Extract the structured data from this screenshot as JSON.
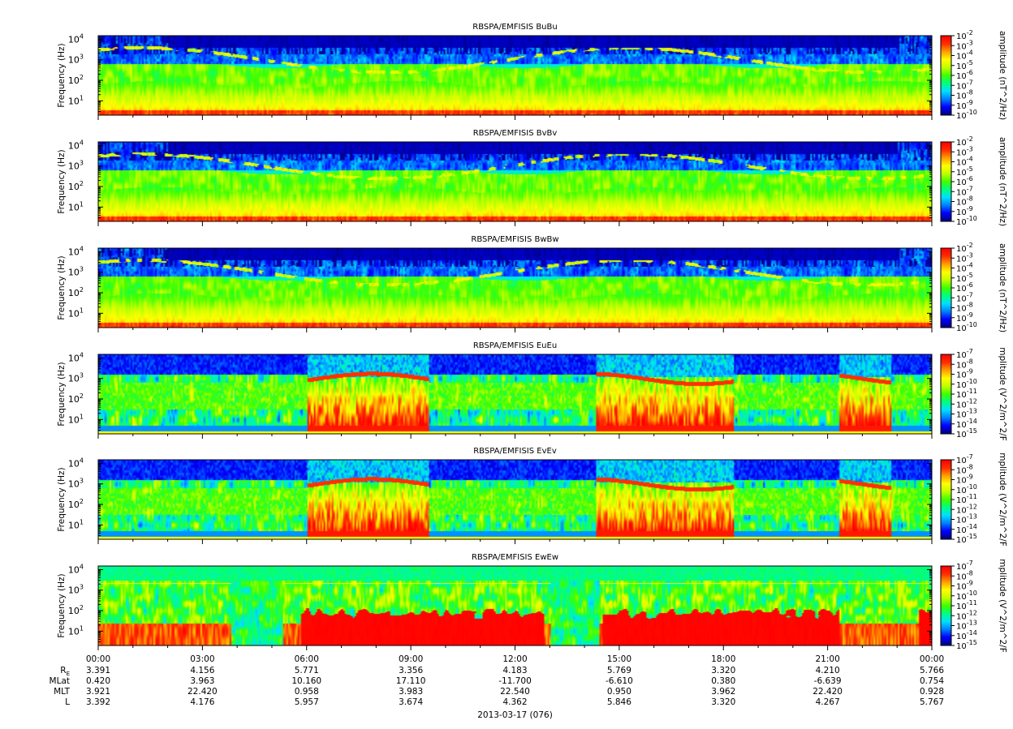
{
  "chart_data": {
    "type": "heatmap",
    "panels": [
      {
        "title": "RBSPA/EMFISIS  BuBu",
        "ylabel": "Frequency (Hz)",
        "ylim": [
          2,
          15000
        ],
        "yscale": "log",
        "colorbar": {
          "label": "amplitude (nT^2/Hz)",
          "range_exp": [
            -10,
            -2
          ],
          "tick_exponents": [
            -10,
            -9,
            -8,
            -7,
            -6,
            -5,
            -4,
            -3,
            -2
          ]
        }
      },
      {
        "title": "RBSPA/EMFISIS  BvBv",
        "ylabel": "Frequency (Hz)",
        "ylim": [
          2,
          15000
        ],
        "yscale": "log",
        "colorbar": {
          "label": "amplitude (nT^2/Hz)",
          "range_exp": [
            -10,
            -2
          ],
          "tick_exponents": [
            -10,
            -9,
            -8,
            -7,
            -6,
            -5,
            -4,
            -3,
            -2
          ]
        }
      },
      {
        "title": "RBSPA/EMFISIS  BwBw",
        "ylabel": "Frequency (Hz)",
        "ylim": [
          2,
          15000
        ],
        "yscale": "log",
        "colorbar": {
          "label": "amplitude (nT^2/Hz)",
          "range_exp": [
            -10,
            -2
          ],
          "tick_exponents": [
            -10,
            -9,
            -8,
            -7,
            -6,
            -5,
            -4,
            -3,
            -2
          ]
        }
      },
      {
        "title": "RBSPA/EMFISIS  EuEu",
        "ylabel": "Frequency (Hz)",
        "ylim": [
          2,
          15000
        ],
        "yscale": "log",
        "colorbar": {
          "label": "mplitude (V^2/m^2/F",
          "range_exp": [
            -15,
            -7
          ],
          "tick_exponents": [
            -15,
            -14,
            -13,
            -12,
            -11,
            -10,
            -9,
            -8,
            -7
          ]
        }
      },
      {
        "title": "RBSPA/EMFISIS  EvEv",
        "ylabel": "Frequency (Hz)",
        "ylim": [
          2,
          15000
        ],
        "yscale": "log",
        "colorbar": {
          "label": "mplitude (V^2/m^2/F",
          "range_exp": [
            -15,
            -7
          ],
          "tick_exponents": [
            -15,
            -14,
            -13,
            -12,
            -11,
            -10,
            -9,
            -8,
            -7
          ]
        }
      },
      {
        "title": "RBSPA/EMFISIS  EwEw",
        "ylabel": "Frequency (Hz)",
        "ylim": [
          2,
          15000
        ],
        "yscale": "log",
        "colorbar": {
          "label": "mplitude (V^2/m^2/F",
          "range_exp": [
            -15,
            -7
          ],
          "tick_exponents": [
            -15,
            -14,
            -13,
            -12,
            -11,
            -10,
            -9,
            -8,
            -7
          ]
        }
      }
    ],
    "y_ticks": [
      {
        "base": "10",
        "exp": "1",
        "value": 10
      },
      {
        "base": "10",
        "exp": "2",
        "value": 100
      },
      {
        "base": "10",
        "exp": "3",
        "value": 1000
      },
      {
        "base": "10",
        "exp": "4",
        "value": 10000
      }
    ],
    "x_ticks": [
      "00:00",
      "03:00",
      "06:00",
      "09:00",
      "12:00",
      "15:00",
      "18:00",
      "21:00",
      "00:00"
    ],
    "x_range_hours": [
      0,
      24
    ],
    "ephemeris": [
      {
        "label": "R",
        "sub": "E",
        "values": [
          "3.391",
          "4.156",
          "5.771",
          "3.356",
          "4.183",
          "5.769",
          "3.320",
          "4.210",
          "5.766"
        ]
      },
      {
        "label": "MLat",
        "sub": "",
        "values": [
          "0.420",
          "3.963",
          "10.160",
          "17.110",
          "-11.700",
          "-6.610",
          "0.380",
          "-6.639",
          "0.754"
        ]
      },
      {
        "label": "MLT",
        "sub": "",
        "values": [
          "3.921",
          "22.420",
          "0.958",
          "3.983",
          "22.540",
          "0.950",
          "3.962",
          "22.420",
          "0.928"
        ]
      },
      {
        "label": "L",
        "sub": "",
        "values": [
          "3.392",
          "4.176",
          "5.957",
          "3.674",
          "4.362",
          "5.846",
          "3.320",
          "4.267",
          "5.767"
        ]
      }
    ],
    "xlabel": "2013-03-17 (076)",
    "colormap": [
      "#000080",
      "#0000ff",
      "#0080ff",
      "#00e0ff",
      "#00ff80",
      "#40ff00",
      "#c0ff00",
      "#ffff00",
      "#ffa000",
      "#ff3000",
      "#ff0000"
    ]
  }
}
